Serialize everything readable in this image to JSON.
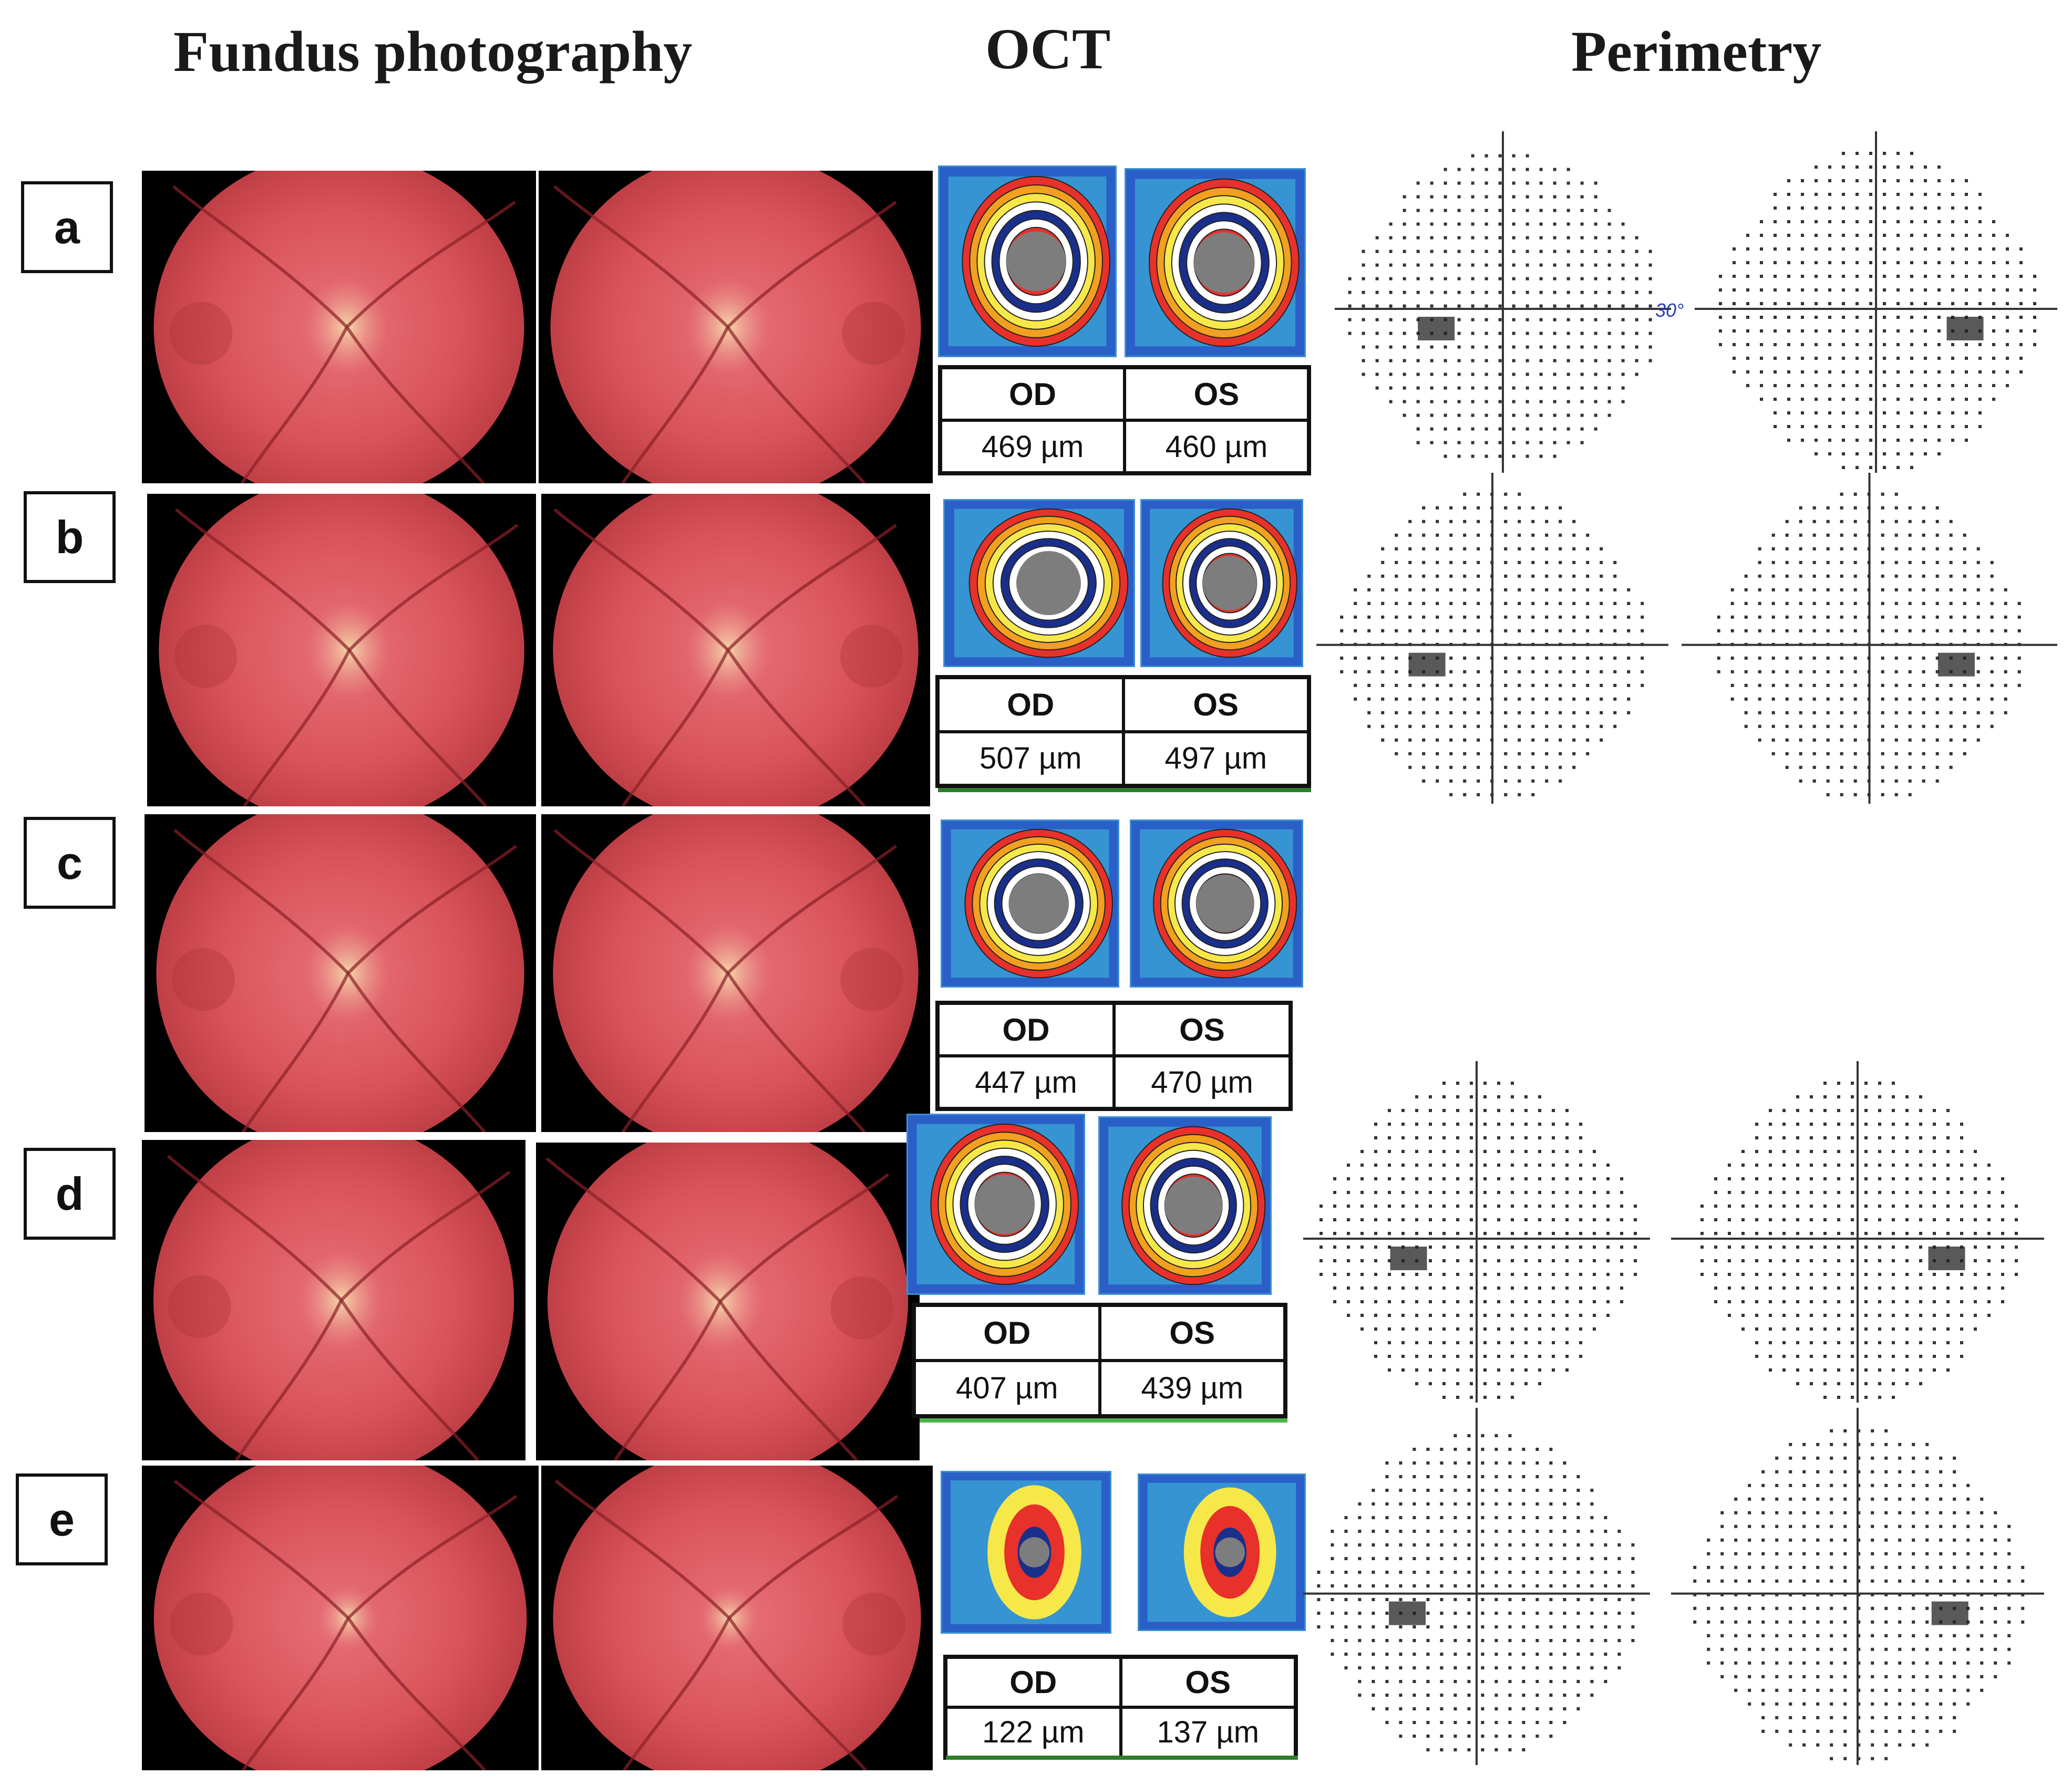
{
  "headers": {
    "fundus": "Fundus photography",
    "oct": "OCT",
    "perimetry": "Perimetry"
  },
  "perimetry_axis_label": "30°",
  "colors": {
    "fundus_red": "#d9545a",
    "oct_blue": "#2a5fc8",
    "table_underline": "#2d7d2d"
  },
  "rows": [
    {
      "label": "a",
      "od_label": "OD",
      "os_label": "OS",
      "od_value": "469 µm",
      "os_value": "460 µm",
      "has_perimetry": true
    },
    {
      "label": "b",
      "od_label": "OD",
      "os_label": "OS",
      "od_value": "507 µm",
      "os_value": "497 µm",
      "has_perimetry": true
    },
    {
      "label": "c",
      "od_label": "OD",
      "os_label": "OS",
      "od_value": "447 µm",
      "os_value": "470 µm",
      "has_perimetry": false
    },
    {
      "label": "d",
      "od_label": "OD",
      "os_label": "OS",
      "od_value": "407 µm",
      "os_value": "439 µm",
      "has_perimetry": true
    },
    {
      "label": "e",
      "od_label": "OD",
      "os_label": "OS",
      "od_value": "122 µm",
      "os_value": "137 µm",
      "has_perimetry": true
    }
  ]
}
